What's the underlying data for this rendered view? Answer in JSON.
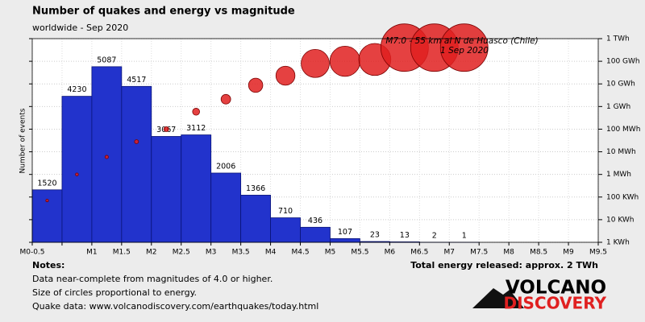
{
  "chart_data": {
    "type": "histogram",
    "title": "Number of quakes and energy vs magnitude",
    "subtitle": "worldwide - Sep 2020",
    "ylabel": "Number of events",
    "bins": [
      0,
      0.5,
      1,
      1.5,
      2,
      2.5,
      3,
      3.5,
      4,
      4.5,
      5,
      5.5,
      6,
      6.5,
      7,
      7.5
    ],
    "values": [
      1520,
      4230,
      5087,
      4517,
      3067,
      3112,
      2006,
      1366,
      710,
      436,
      107,
      23,
      13,
      2,
      1
    ],
    "color": "#2233cc",
    "xlim": [
      0,
      9.5
    ],
    "xticks": [
      {
        "value": 0,
        "label": "M0-0.5"
      },
      {
        "value": 0.5,
        "label": null
      },
      {
        "value": 1,
        "label": "M1"
      },
      {
        "value": 1.5,
        "label": "M1.5"
      },
      {
        "value": 2,
        "label": "M2"
      },
      {
        "value": 2.5,
        "label": "M2.5"
      },
      {
        "value": 3,
        "label": "M3"
      },
      {
        "value": 3.5,
        "label": "M3.5"
      },
      {
        "value": 4,
        "label": "M4"
      },
      {
        "value": 4.5,
        "label": "M4.5"
      },
      {
        "value": 5,
        "label": "M5"
      },
      {
        "value": 5.5,
        "label": "M5.5"
      },
      {
        "value": 6,
        "label": "M6"
      },
      {
        "value": 6.5,
        "label": "M6.5"
      },
      {
        "value": 7,
        "label": "M7"
      },
      {
        "value": 7.5,
        "label": "M7.5"
      },
      {
        "value": 8,
        "label": "M8"
      },
      {
        "value": 8.5,
        "label": "M8.5"
      },
      {
        "value": 9,
        "label": "M9"
      },
      {
        "value": 9.5,
        "label": "M9.5"
      }
    ],
    "ylim": [
      0,
      5900
    ],
    "energy": {
      "axis": "y2",
      "color": "#e02020",
      "values": [
        70,
        1000,
        5900,
        28000,
        100000,
        590000,
        2100000,
        8700000,
        23000000,
        80000000,
        100000000,
        120000000,
        400000000,
        400000000,
        400000000
      ]
    },
    "y2log": true,
    "y2lim": [
      1,
      1000000000
    ],
    "y2ticks": [
      {
        "value": 1,
        "label": "1 KWh"
      },
      {
        "value": 10,
        "label": "10 KWh"
      },
      {
        "value": 100,
        "label": "100 KWh"
      },
      {
        "value": 1000,
        "label": "1 MWh"
      },
      {
        "value": 10000,
        "label": "10 MWh"
      },
      {
        "value": 100000,
        "label": "100 MWh"
      },
      {
        "value": 1000000,
        "label": "1 GWh"
      },
      {
        "value": 10000000,
        "label": "10 GWh"
      },
      {
        "value": 100000000,
        "label": "100 GWh"
      },
      {
        "value": 1000000000,
        "label": "1 TWh"
      }
    ],
    "grid": true,
    "annotation": [
      "M7.0 - 55 km al N de Huasco (Chile)",
      "1 Sep 2020"
    ],
    "notes_title": "Notes:",
    "notes": [
      "Data near-complete from magnitudes of 4.0 or higher.",
      "Size of circles proportional to energy.",
      "Quake data: www.volcanodiscovery.com/earthquakes/today.html"
    ],
    "total": "Total energy released: approx. 2 TWh",
    "logo": [
      "VOLCANO",
      "DISCOVERY"
    ]
  }
}
